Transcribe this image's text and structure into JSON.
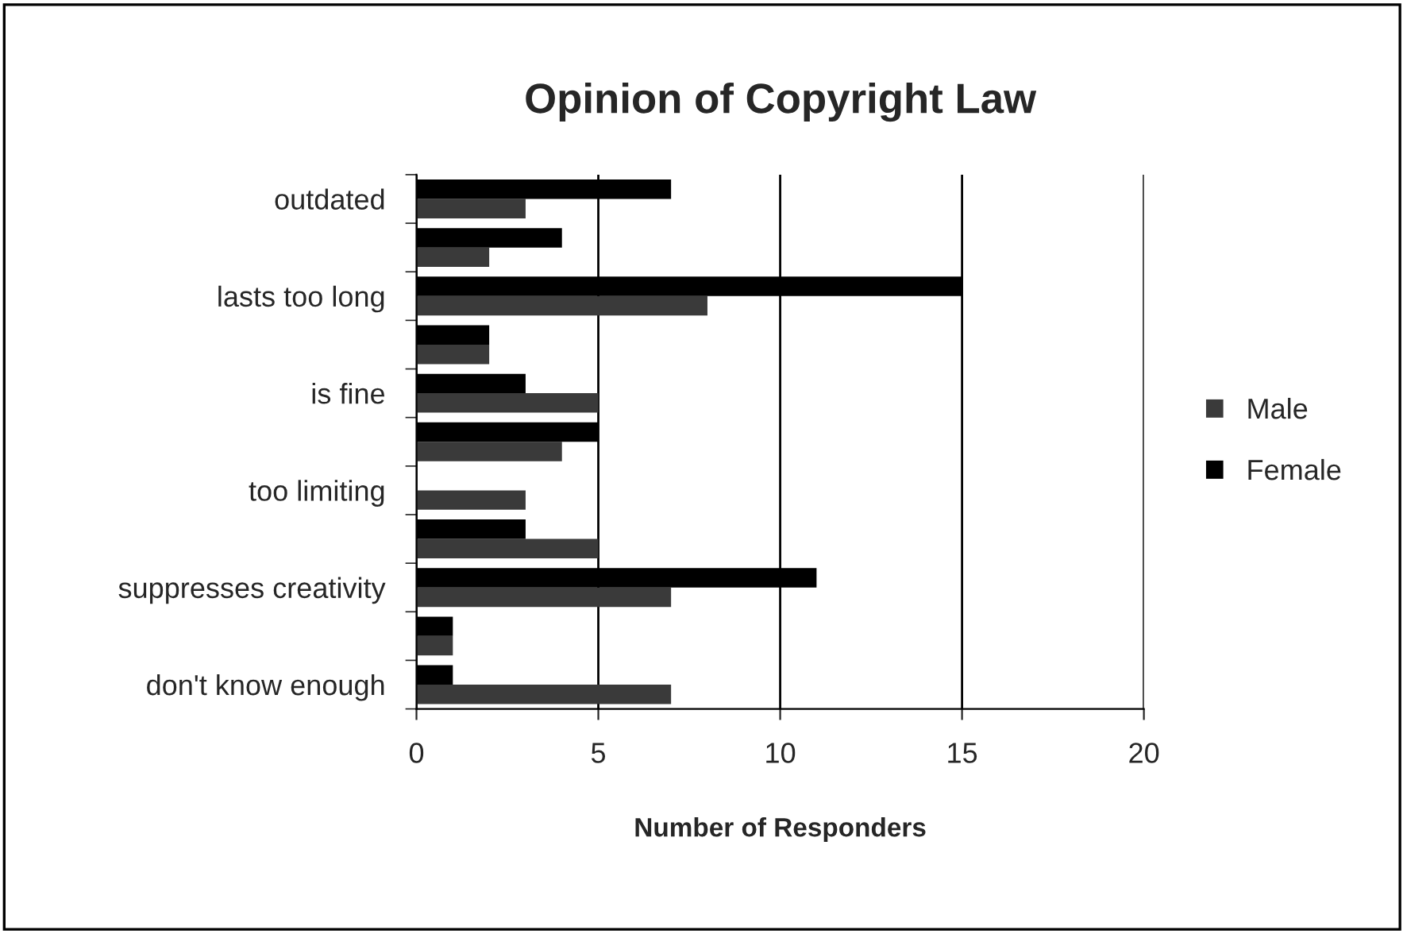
{
  "chart_data": {
    "type": "bar",
    "orientation": "horizontal",
    "title": "Opinion of Copyright Law",
    "xlabel": "Number of Responders",
    "categories": [
      "outdated",
      null,
      "lasts too long",
      null,
      "is fine",
      null,
      "too limiting",
      null,
      "suppresses creativity",
      null,
      "don't know enough"
    ],
    "series": [
      {
        "name": "Male",
        "color": "#3a3a3a",
        "values": [
          3,
          2,
          8,
          2,
          5,
          4,
          3,
          5,
          7,
          1,
          7
        ]
      },
      {
        "name": "Female",
        "color": "#000000",
        "values": [
          7,
          4,
          15,
          2,
          3,
          5,
          null,
          3,
          11,
          1,
          1
        ]
      }
    ],
    "xlim": [
      0,
      20
    ],
    "xticks": [
      0,
      5,
      10,
      15,
      20
    ],
    "grid": "x",
    "legend": "right"
  }
}
